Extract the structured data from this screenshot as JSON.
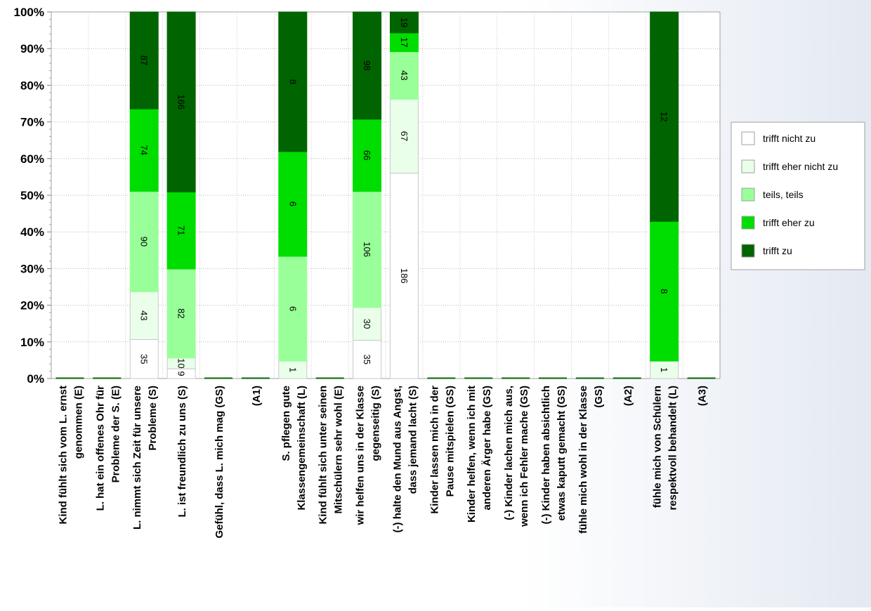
{
  "chart_data": {
    "type": "bar",
    "stacked": "percent",
    "ylim": [
      0,
      100
    ],
    "y_ticks": [
      "0%",
      "10%",
      "20%",
      "30%",
      "40%",
      "50%",
      "60%",
      "70%",
      "80%",
      "90%",
      "100%"
    ],
    "grid": "dotted",
    "legend_position": "right",
    "categories": [
      [
        "Kind fühlt sich vom L. ernst",
        "genommen (E)"
      ],
      [
        "L. hat ein offenes Ohr für",
        "Probleme der S. (E)"
      ],
      [
        "L. nimmt sich Zeit für unsere",
        "Probleme (S)"
      ],
      [
        "L. ist freundlich zu uns (S)"
      ],
      [
        "Gefühl, dass L. mich mag (GS)"
      ],
      [
        "(A1)"
      ],
      [
        "S. pflegen gute",
        "Klassengemeinschaft (L)"
      ],
      [
        "Kind fühlt sich unter seinen",
        "Mitschülern sehr wohl (E)"
      ],
      [
        "wir helfen uns in der Klasse",
        "gegenseitig (S)"
      ],
      [
        "(-) halte den Mund aus Angst,",
        "dass jemand lacht (S)"
      ],
      [
        "Kinder lassen mich in der",
        "Pause mitspielen (GS)"
      ],
      [
        "Kinder helfen, wenn ich mit",
        "anderen Ärger habe (GS)"
      ],
      [
        "(-) Kinder lachen mich aus,",
        "wenn ich Fehler mache (GS)"
      ],
      [
        "(-) Kinder haben absichtlich",
        "etwas kaputt gemacht (GS)"
      ],
      [
        "fühle mich wohl in der Klasse",
        "(GS)"
      ],
      [
        "(A2)"
      ],
      [
        "fühle mich von Schülern",
        "respektvoll behandelt (L)"
      ],
      [
        "(A3)"
      ]
    ],
    "series": [
      {
        "name": "trifft nicht zu",
        "color": "#ffffff",
        "values": [
          0,
          0,
          35,
          9,
          0,
          0,
          0,
          0,
          35,
          186,
          0,
          0,
          0,
          0,
          0,
          0,
          0,
          0
        ]
      },
      {
        "name": "trifft eher nicht zu",
        "color": "#eaffea",
        "values": [
          0,
          0,
          43,
          10,
          0,
          0,
          1,
          0,
          30,
          67,
          0,
          0,
          0,
          0,
          0,
          0,
          1,
          0
        ]
      },
      {
        "name": "teils, teils",
        "color": "#99ff99",
        "values": [
          0,
          0,
          90,
          82,
          0,
          0,
          6,
          0,
          106,
          43,
          0,
          0,
          0,
          0,
          0,
          0,
          0,
          0
        ]
      },
      {
        "name": "trifft eher zu",
        "color": "#00dd00",
        "values": [
          0,
          0,
          74,
          71,
          0,
          0,
          6,
          0,
          66,
          17,
          0,
          0,
          0,
          0,
          0,
          0,
          8,
          0
        ]
      },
      {
        "name": "trifft zu",
        "color": "#006400",
        "values": [
          0,
          0,
          87,
          166,
          0,
          0,
          8,
          0,
          98,
          19,
          0,
          0,
          0,
          0,
          0,
          0,
          12,
          0
        ]
      }
    ]
  }
}
